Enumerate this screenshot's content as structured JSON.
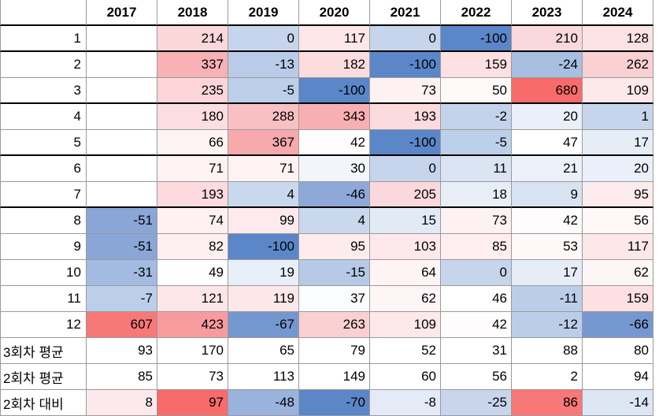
{
  "table": {
    "corner": "",
    "columns": [
      "2017",
      "2018",
      "2019",
      "2020",
      "2021",
      "2022",
      "2023",
      "2024"
    ],
    "rows": [
      {
        "label": "1",
        "values": [
          "",
          "214",
          "0",
          "117",
          "0",
          "-100",
          "210",
          "128"
        ],
        "colors": [
          "#ffffff",
          "#fbd7da",
          "#c6d5ec",
          "#fde7e9",
          "#c6d5ec",
          "#5b86c8",
          "#fbd8db",
          "#fce2e4"
        ]
      },
      {
        "label": "2",
        "values": [
          "",
          "337",
          "-13",
          "182",
          "-100",
          "159",
          "-24",
          "262"
        ],
        "colors": [
          "#ffffff",
          "#f8b1b5",
          "#b9cbe8",
          "#fcdcdf",
          "#5b86c8",
          "#fce0e2",
          "#a8bfe2",
          "#fad0d3"
        ]
      },
      {
        "label": "3",
        "values": [
          "",
          "235",
          "-5",
          "-100",
          "73",
          "50",
          "680",
          "109"
        ],
        "colors": [
          "#ffffff",
          "#fbd5d8",
          "#bdd0ea",
          "#5b86c8",
          "#fef1f2",
          "#fefafa",
          "#f86b6b",
          "#fde8ea"
        ]
      },
      {
        "label": "4",
        "values": [
          "",
          "180",
          "288",
          "343",
          "193",
          "-2",
          "20",
          "1"
        ],
        "colors": [
          "#ffffff",
          "#fcdde0",
          "#f9c0c4",
          "#f8afb3",
          "#fcdadd",
          "#c2d3eb",
          "#eaf0f9",
          "#c6d5ec"
        ]
      },
      {
        "label": "5",
        "values": [
          "",
          "66",
          "367",
          "42",
          "-100",
          "-5",
          "47",
          "17"
        ],
        "colors": [
          "#ffffff",
          "#fef3f4",
          "#f8a9ae",
          "#fefcfc",
          "#5b86c8",
          "#bdd0ea",
          "#ffffff",
          "#e6edf7"
        ]
      },
      {
        "label": "6",
        "values": [
          "",
          "71",
          "71",
          "30",
          "0",
          "11",
          "21",
          "20"
        ],
        "colors": [
          "#ffffff",
          "#fef2f3",
          "#fef2f3",
          "#f2f6fb",
          "#c6d5ec",
          "#dae4f3",
          "#ebf1f9",
          "#eaf0f9"
        ]
      },
      {
        "label": "7",
        "values": [
          "",
          "193",
          "4",
          "-46",
          "205",
          "18",
          "9",
          "95"
        ],
        "colors": [
          "#ffffff",
          "#fcdadd",
          "#cad8ed",
          "#8ea9d9",
          "#fbd8db",
          "#e7eef8",
          "#d8e3f2",
          "#feebed"
        ]
      },
      {
        "label": "8",
        "values": [
          "-51",
          "74",
          "99",
          "4",
          "15",
          "73",
          "42",
          "56"
        ],
        "colors": [
          "#8aa6d7",
          "#fef1f2",
          "#feeaec",
          "#cad8ed",
          "#e2eaf6",
          "#fef1f2",
          "#fefcfc",
          "#fff7f8"
        ]
      },
      {
        "label": "9",
        "values": [
          "-51",
          "82",
          "-100",
          "95",
          "103",
          "85",
          "53",
          "117"
        ],
        "colors": [
          "#8aa6d7",
          "#feeff0",
          "#5b86c8",
          "#feebed",
          "#fde9eb",
          "#feeef0",
          "#fff8f8",
          "#fde7e9"
        ]
      },
      {
        "label": "10",
        "values": [
          "-31",
          "49",
          "19",
          "-15",
          "64",
          "0",
          "17",
          "62"
        ],
        "colors": [
          "#a3bbe0",
          "#fffefe",
          "#e9eff8",
          "#b6c9e7",
          "#fef4f5",
          "#c6d5ec",
          "#e6edf7",
          "#fef5f6"
        ]
      },
      {
        "label": "11",
        "values": [
          "-7",
          "121",
          "119",
          "37",
          "62",
          "46",
          "-11",
          "159"
        ],
        "colors": [
          "#bccfea",
          "#fde6e8",
          "#fde7e9",
          "#fafcfe",
          "#fef5f6",
          "#ffffff",
          "#bbcee9",
          "#fce0e2"
        ]
      },
      {
        "label": "12",
        "values": [
          "607",
          "423",
          "-67",
          "263",
          "109",
          "42",
          "-12",
          "-66"
        ],
        "colors": [
          "#f87777",
          "#f89b9f",
          "#7597d0",
          "#fad0d3",
          "#fde8ea",
          "#fefcfc",
          "#baceea",
          "#7698d0"
        ]
      }
    ],
    "summary": [
      {
        "label": "3회차 평균",
        "values": [
          "93",
          "170",
          "65",
          "79",
          "52",
          "31",
          "88",
          "80"
        ],
        "colors": [
          "#ffffff",
          "#ffffff",
          "#ffffff",
          "#ffffff",
          "#ffffff",
          "#ffffff",
          "#ffffff",
          "#ffffff"
        ]
      },
      {
        "label": "2회차 평균",
        "values": [
          "85",
          "73",
          "113",
          "149",
          "60",
          "56",
          "2",
          "94"
        ],
        "colors": [
          "#ffffff",
          "#ffffff",
          "#ffffff",
          "#ffffff",
          "#ffffff",
          "#ffffff",
          "#ffffff",
          "#ffffff"
        ]
      },
      {
        "label": "2회차 대비",
        "values": [
          "8",
          "97",
          "-48",
          "-70",
          "-8",
          "-25",
          "86",
          "-14"
        ],
        "colors": [
          "#fde9eb",
          "#f86b6b",
          "#9ab3dc",
          "#5b86c8",
          "#e4ebf6",
          "#c8d6ed",
          "#f87777",
          "#dde6f4"
        ]
      }
    ]
  }
}
